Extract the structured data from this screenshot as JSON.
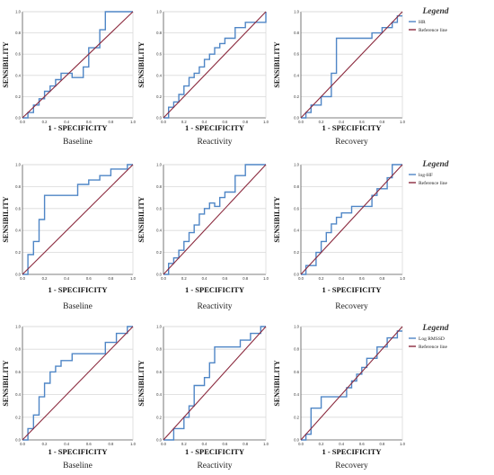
{
  "legends": [
    {
      "title": "Legend",
      "items": [
        "HR",
        "Reference line"
      ]
    },
    {
      "title": "Legend",
      "items": [
        "log-HF",
        "Reference line"
      ]
    },
    {
      "title": "Legend",
      "items": [
        "Log RMSSD",
        "Reference line"
      ]
    }
  ],
  "colors": {
    "roc": "#4f86c6",
    "reference": "#8b2a3e",
    "grid": "#d9d9d9",
    "axis": "#555555"
  },
  "chart_data": [
    {
      "type": "line",
      "row": 0,
      "col": 0,
      "title": "Baseline",
      "xlabel": "1 - SPECIFICITY",
      "ylabel": "SENSIBILITY",
      "xlim": [
        0,
        1
      ],
      "ylim": [
        0,
        1
      ],
      "grid": true,
      "ticks": [
        "0.0",
        "0.2",
        "0.4",
        "0.6",
        "0.8",
        "1.0"
      ],
      "series": [
        {
          "name": "HR",
          "x": [
            0,
            0.05,
            0.05,
            0.1,
            0.1,
            0.15,
            0.15,
            0.2,
            0.2,
            0.25,
            0.25,
            0.3,
            0.3,
            0.35,
            0.35,
            0.45,
            0.45,
            0.55,
            0.55,
            0.6,
            0.6,
            0.7,
            0.7,
            0.75,
            0.75,
            1.0
          ],
          "y": [
            0,
            0,
            0.05,
            0.05,
            0.12,
            0.12,
            0.18,
            0.18,
            0.25,
            0.25,
            0.3,
            0.3,
            0.36,
            0.36,
            0.42,
            0.42,
            0.38,
            0.38,
            0.48,
            0.48,
            0.66,
            0.66,
            0.83,
            0.83,
            1.0,
            1.0
          ]
        },
        {
          "name": "Reference line",
          "x": [
            0,
            1
          ],
          "y": [
            0,
            1
          ]
        }
      ]
    },
    {
      "type": "line",
      "row": 0,
      "col": 1,
      "title": "Reactivity",
      "xlabel": "1 - SPECIFICITY",
      "ylabel": "SENSIBILITY",
      "xlim": [
        0,
        1
      ],
      "ylim": [
        0,
        1
      ],
      "grid": true,
      "ticks": [
        "0.0",
        "0.2",
        "0.4",
        "0.6",
        "0.8",
        "1.0"
      ],
      "series": [
        {
          "name": "HR",
          "x": [
            0,
            0.05,
            0.05,
            0.1,
            0.1,
            0.15,
            0.15,
            0.2,
            0.2,
            0.25,
            0.25,
            0.3,
            0.3,
            0.35,
            0.35,
            0.4,
            0.4,
            0.45,
            0.45,
            0.5,
            0.5,
            0.55,
            0.55,
            0.6,
            0.6,
            0.7,
            0.7,
            0.8,
            0.8,
            1.0,
            1.0
          ],
          "y": [
            0,
            0,
            0.1,
            0.1,
            0.15,
            0.15,
            0.22,
            0.22,
            0.3,
            0.3,
            0.38,
            0.38,
            0.42,
            0.42,
            0.48,
            0.48,
            0.55,
            0.55,
            0.6,
            0.6,
            0.66,
            0.66,
            0.7,
            0.7,
            0.75,
            0.75,
            0.85,
            0.85,
            0.9,
            0.9,
            1.0
          ]
        },
        {
          "name": "Reference line",
          "x": [
            0,
            1
          ],
          "y": [
            0,
            1
          ]
        }
      ]
    },
    {
      "type": "line",
      "row": 0,
      "col": 2,
      "title": "Recovery",
      "xlabel": "1 - SPECIFICITY",
      "ylabel": "SENSIBILITY",
      "xlim": [
        0,
        1
      ],
      "ylim": [
        0,
        1
      ],
      "grid": true,
      "ticks": [
        "0.0",
        "0.2",
        "0.4",
        "0.6",
        "0.8",
        "1.0"
      ],
      "series": [
        {
          "name": "HR",
          "x": [
            0,
            0.05,
            0.05,
            0.1,
            0.1,
            0.2,
            0.2,
            0.3,
            0.3,
            0.35,
            0.35,
            0.7,
            0.7,
            0.8,
            0.8,
            0.9,
            0.9,
            0.95,
            0.95,
            1.0
          ],
          "y": [
            0,
            0,
            0.05,
            0.05,
            0.12,
            0.12,
            0.2,
            0.2,
            0.42,
            0.42,
            0.75,
            0.75,
            0.8,
            0.8,
            0.85,
            0.85,
            0.9,
            0.9,
            0.96,
            0.96
          ]
        },
        {
          "name": "Reference line",
          "x": [
            0,
            1
          ],
          "y": [
            0,
            1
          ]
        }
      ]
    },
    {
      "type": "line",
      "row": 1,
      "col": 0,
      "title": "Baseline",
      "xlabel": "1 - SPECIFICITY",
      "ylabel": "SENSIBILITY",
      "xlim": [
        0,
        1
      ],
      "ylim": [
        0,
        1
      ],
      "grid": true,
      "ticks": [
        "0.0",
        "0.2",
        "0.4",
        "0.6",
        "0.8",
        "1.0"
      ],
      "series": [
        {
          "name": "log-HF",
          "x": [
            0,
            0.05,
            0.05,
            0.1,
            0.1,
            0.15,
            0.15,
            0.2,
            0.2,
            0.5,
            0.5,
            0.6,
            0.6,
            0.7,
            0.7,
            0.8,
            0.8,
            0.95,
            0.95,
            1.0
          ],
          "y": [
            0,
            0,
            0.18,
            0.18,
            0.3,
            0.3,
            0.5,
            0.5,
            0.72,
            0.72,
            0.82,
            0.82,
            0.86,
            0.86,
            0.9,
            0.9,
            0.96,
            0.96,
            1.0,
            1.0
          ]
        },
        {
          "name": "Reference line",
          "x": [
            0,
            1
          ],
          "y": [
            0,
            1
          ]
        }
      ]
    },
    {
      "type": "line",
      "row": 1,
      "col": 1,
      "title": "Reactivity",
      "xlabel": "1 - SPECIFICITY",
      "ylabel": "SENSIBILITY",
      "xlim": [
        0,
        1
      ],
      "ylim": [
        0,
        1
      ],
      "grid": true,
      "ticks": [
        "0.0",
        "0.2",
        "0.4",
        "0.6",
        "0.8",
        "1.0"
      ],
      "series": [
        {
          "name": "log-HF",
          "x": [
            0,
            0.05,
            0.05,
            0.1,
            0.1,
            0.15,
            0.15,
            0.2,
            0.2,
            0.25,
            0.25,
            0.3,
            0.3,
            0.35,
            0.35,
            0.4,
            0.4,
            0.45,
            0.45,
            0.5,
            0.5,
            0.55,
            0.55,
            0.6,
            0.6,
            0.7,
            0.7,
            0.8,
            0.8,
            1.0
          ],
          "y": [
            0,
            0,
            0.1,
            0.1,
            0.15,
            0.15,
            0.22,
            0.22,
            0.3,
            0.3,
            0.38,
            0.38,
            0.45,
            0.45,
            0.55,
            0.55,
            0.6,
            0.6,
            0.65,
            0.65,
            0.62,
            0.62,
            0.7,
            0.7,
            0.75,
            0.75,
            0.9,
            0.9,
            1.0,
            1.0
          ]
        },
        {
          "name": "Reference line",
          "x": [
            0,
            1
          ],
          "y": [
            0,
            1
          ]
        }
      ]
    },
    {
      "type": "line",
      "row": 1,
      "col": 2,
      "title": "Recovery",
      "xlabel": "1 - SPECIFICITY",
      "ylabel": "SENSIBILITY",
      "xlim": [
        0,
        1
      ],
      "ylim": [
        0,
        1
      ],
      "grid": true,
      "ticks": [
        "0.0",
        "0.2",
        "0.4",
        "0.6",
        "0.8",
        "1.0"
      ],
      "series": [
        {
          "name": "log-HF",
          "x": [
            0,
            0.05,
            0.05,
            0.15,
            0.15,
            0.2,
            0.2,
            0.25,
            0.25,
            0.3,
            0.3,
            0.35,
            0.35,
            0.4,
            0.4,
            0.5,
            0.5,
            0.7,
            0.7,
            0.75,
            0.75,
            0.85,
            0.85,
            0.9,
            0.9,
            1.0
          ],
          "y": [
            0,
            0,
            0.08,
            0.08,
            0.2,
            0.2,
            0.3,
            0.3,
            0.38,
            0.38,
            0.46,
            0.46,
            0.52,
            0.52,
            0.56,
            0.56,
            0.62,
            0.62,
            0.72,
            0.72,
            0.78,
            0.78,
            0.88,
            0.88,
            1.0,
            1.0
          ]
        },
        {
          "name": "Reference line",
          "x": [
            0,
            1
          ],
          "y": [
            0,
            1
          ]
        }
      ]
    },
    {
      "type": "line",
      "row": 2,
      "col": 0,
      "title": "Baseline",
      "xlabel": "1 - SPECIFICITY",
      "ylabel": "SENSIBILITY",
      "xlim": [
        0,
        1
      ],
      "ylim": [
        0,
        1
      ],
      "grid": true,
      "ticks": [
        "0.0",
        "0.2",
        "0.4",
        "0.6",
        "0.8",
        "1.0"
      ],
      "series": [
        {
          "name": "Log RMSSD",
          "x": [
            0,
            0.05,
            0.05,
            0.1,
            0.1,
            0.15,
            0.15,
            0.2,
            0.2,
            0.25,
            0.25,
            0.3,
            0.3,
            0.35,
            0.35,
            0.45,
            0.45,
            0.75,
            0.75,
            0.85,
            0.85,
            0.95,
            0.95,
            1.0
          ],
          "y": [
            0,
            0,
            0.1,
            0.1,
            0.22,
            0.22,
            0.38,
            0.38,
            0.5,
            0.5,
            0.6,
            0.6,
            0.65,
            0.65,
            0.7,
            0.7,
            0.76,
            0.76,
            0.86,
            0.86,
            0.94,
            0.94,
            1.0,
            1.0
          ]
        },
        {
          "name": "Reference line",
          "x": [
            0,
            1
          ],
          "y": [
            0,
            1
          ]
        }
      ]
    },
    {
      "type": "line",
      "row": 2,
      "col": 1,
      "title": "Reactivity",
      "xlabel": "1 - SPECIFICITY",
      "ylabel": "SENSIBILITY",
      "xlim": [
        0,
        1
      ],
      "ylim": [
        0,
        1
      ],
      "grid": true,
      "ticks": [
        "0.0",
        "0.2",
        "0.4",
        "0.6",
        "0.8",
        "1.0"
      ],
      "series": [
        {
          "name": "Log RMSSD",
          "x": [
            0,
            0.1,
            0.1,
            0.2,
            0.2,
            0.25,
            0.25,
            0.3,
            0.3,
            0.4,
            0.4,
            0.45,
            0.45,
            0.5,
            0.5,
            0.75,
            0.75,
            0.85,
            0.85,
            0.95,
            0.95,
            1.0
          ],
          "y": [
            0,
            0,
            0.1,
            0.1,
            0.2,
            0.2,
            0.3,
            0.3,
            0.48,
            0.48,
            0.55,
            0.55,
            0.68,
            0.68,
            0.82,
            0.82,
            0.88,
            0.88,
            0.94,
            0.94,
            1.0,
            1.0
          ]
        },
        {
          "name": "Reference line",
          "x": [
            0,
            1
          ],
          "y": [
            0,
            1
          ]
        }
      ]
    },
    {
      "type": "line",
      "row": 2,
      "col": 2,
      "title": "Recovery",
      "xlabel": "1 - SPECIFICITY",
      "ylabel": "SENSIBILITY",
      "xlim": [
        0,
        1
      ],
      "ylim": [
        0,
        1
      ],
      "grid": true,
      "ticks": [
        "0.0",
        "0.2",
        "0.4",
        "0.6",
        "0.8",
        "1.0"
      ],
      "series": [
        {
          "name": "Log RMSSD",
          "x": [
            0,
            0.05,
            0.05,
            0.1,
            0.1,
            0.2,
            0.2,
            0.45,
            0.45,
            0.5,
            0.5,
            0.55,
            0.55,
            0.6,
            0.6,
            0.65,
            0.65,
            0.75,
            0.75,
            0.85,
            0.85,
            0.95,
            0.95,
            1.0
          ],
          "y": [
            0,
            0,
            0.05,
            0.05,
            0.28,
            0.28,
            0.38,
            0.38,
            0.46,
            0.46,
            0.52,
            0.52,
            0.58,
            0.58,
            0.64,
            0.64,
            0.72,
            0.72,
            0.82,
            0.82,
            0.9,
            0.9,
            0.96,
            0.96
          ]
        },
        {
          "name": "Reference line",
          "x": [
            0,
            1
          ],
          "y": [
            0,
            1
          ]
        }
      ]
    }
  ]
}
